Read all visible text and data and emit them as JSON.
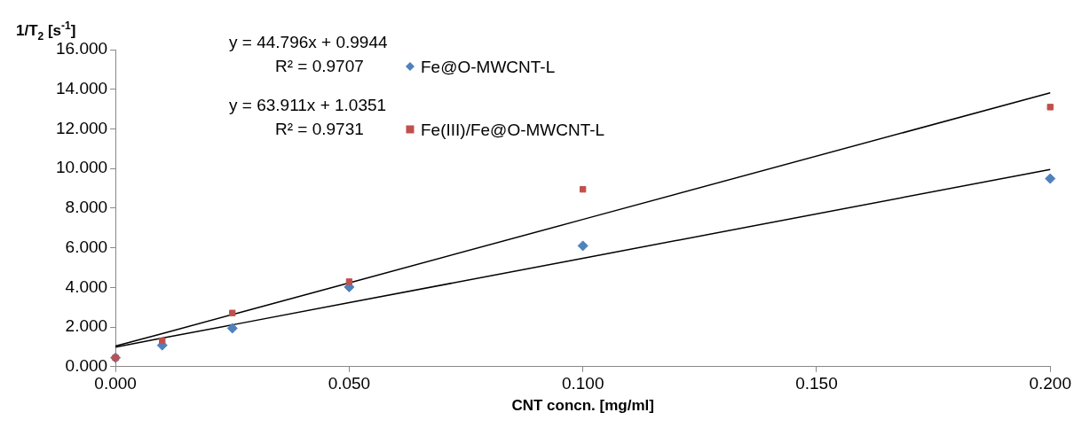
{
  "chart_data": {
    "type": "scatter",
    "xlabel": "CNT concn. [mg/ml]",
    "ylabel": "1/T$_{2}$ [s$^{-1}$]",
    "xlim": [
      0,
      0.2
    ],
    "xticks": [
      {
        "value": 0,
        "label": "0.000"
      },
      {
        "value": 0.05,
        "label": "0.050"
      },
      {
        "value": 0.1,
        "label": "0.100"
      },
      {
        "value": 0.15,
        "label": "0.150"
      },
      {
        "value": 0.2,
        "label": "0.200"
      }
    ],
    "ylim": [
      0,
      16
    ],
    "yticks": [
      {
        "value": 0,
        "label": "0.000"
      },
      {
        "value": 2,
        "label": "2.000"
      },
      {
        "value": 4,
        "label": "4.000"
      },
      {
        "value": 6,
        "label": "6.000"
      },
      {
        "value": 8,
        "label": "8.000"
      },
      {
        "value": 10,
        "label": "10.000"
      },
      {
        "value": 12,
        "label": "12.000"
      },
      {
        "value": 14,
        "label": "14.000"
      },
      {
        "value": 16,
        "label": "16.000"
      }
    ],
    "x": [
      0,
      0.01,
      0.025,
      0.05,
      0.1,
      0.2
    ],
    "series": [
      {
        "name": "Fe@O-MWCNT-L",
        "color": "#4f81bd",
        "marker": "diamond",
        "values": [
          0.45,
          1.08,
          1.94,
          4.02,
          6.1,
          9.49
        ]
      },
      {
        "name": "Fe(III)/Fe@O-MWCNT-L",
        "color": "#c0504d",
        "marker": "square",
        "values": [
          0.45,
          1.31,
          2.71,
          4.29,
          8.95,
          13.1
        ]
      },
      {
        "type": "line",
        "color": "#000000",
        "values": [
          0.99,
          1.44,
          2.11,
          3.23,
          5.47,
          9.95
        ]
      },
      {
        "type": "line",
        "color": "#000000",
        "values": [
          1.04,
          1.67,
          2.63,
          4.23,
          7.43,
          13.82
        ]
      }
    ],
    "annotations": [
      "y = 44.796x + 0.9944",
      "R² = 0.9707",
      "y = 63.911x + 1.0351",
      "R² = 0.9731"
    ],
    "legend": "top left",
    "grid": false
  }
}
